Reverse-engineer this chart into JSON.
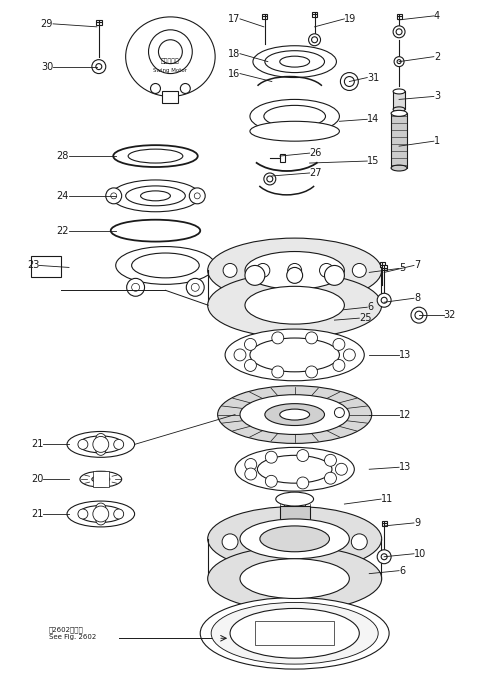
{
  "bg_color": "#ffffff",
  "line_color": "#1a1a1a",
  "fig_width": 4.78,
  "fig_height": 6.83,
  "dpi": 100,
  "annotation_bottom": "第2602図参照\nSee Fig. 2602"
}
